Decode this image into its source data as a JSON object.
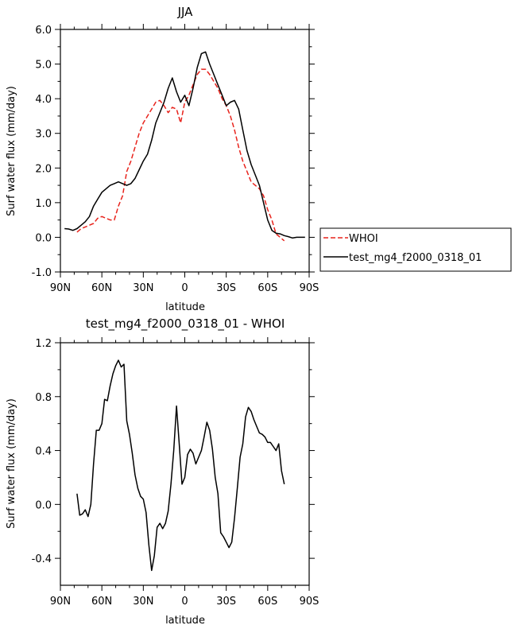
{
  "chart_data": [
    {
      "type": "line",
      "title": "JJA",
      "xlabel": "latitude",
      "ylabel": "Surf water flux (mm/day)",
      "xlim": [
        90,
        -90
      ],
      "ylim": [
        -1.0,
        6.0
      ],
      "x_ticks": [
        90,
        60,
        30,
        0,
        -30,
        -60,
        -90
      ],
      "x_tick_labels": [
        "90N",
        "60N",
        "30N",
        "0",
        "30S",
        "60S",
        "90S"
      ],
      "y_ticks": [
        -1.0,
        0.0,
        1.0,
        2.0,
        3.0,
        4.0,
        5.0,
        6.0
      ],
      "y_tick_labels": [
        "-1.0",
        "0.0",
        "1.0",
        "2.0",
        "3.0",
        "4.0",
        "5.0",
        "6.0"
      ],
      "grid": false,
      "legend_position": "outside-right",
      "series": [
        {
          "name": "WHOI",
          "color": "#e8231c",
          "style": "dashed",
          "x": [
            78,
            75,
            72,
            69,
            66,
            63,
            60,
            57,
            54,
            51,
            48,
            45,
            42,
            39,
            36,
            33,
            30,
            27,
            24,
            21,
            18,
            15,
            12,
            9,
            6,
            3,
            0,
            -3,
            -6,
            -9,
            -12,
            -15,
            -18,
            -21,
            -24,
            -27,
            -30,
            -33,
            -36,
            -39,
            -42,
            -45,
            -48,
            -51,
            -54,
            -57,
            -60,
            -63,
            -66,
            -69,
            -72
          ],
          "y": [
            0.15,
            0.25,
            0.3,
            0.35,
            0.4,
            0.55,
            0.6,
            0.55,
            0.5,
            0.5,
            0.9,
            1.2,
            1.9,
            2.2,
            2.6,
            3.0,
            3.3,
            3.5,
            3.7,
            3.9,
            3.95,
            3.8,
            3.6,
            3.75,
            3.7,
            3.3,
            3.9,
            4.1,
            4.4,
            4.7,
            4.85,
            4.85,
            4.7,
            4.5,
            4.3,
            4.0,
            3.8,
            3.5,
            3.1,
            2.6,
            2.2,
            1.9,
            1.6,
            1.5,
            1.4,
            1.2,
            0.8,
            0.5,
            0.1,
            0.0,
            -0.1
          ]
        },
        {
          "name": "test_mg4_f2000_0318_01",
          "color": "#000000",
          "style": "solid",
          "x": [
            87,
            84,
            81,
            78,
            75,
            72,
            69,
            66,
            63,
            60,
            57,
            54,
            51,
            48,
            45,
            42,
            39,
            36,
            33,
            30,
            27,
            24,
            21,
            18,
            15,
            12,
            9,
            6,
            3,
            0,
            -3,
            -6,
            -9,
            -12,
            -15,
            -18,
            -21,
            -24,
            -27,
            -30,
            -33,
            -36,
            -39,
            -42,
            -45,
            -48,
            -51,
            -54,
            -57,
            -60,
            -63,
            -66,
            -69,
            -72,
            -75,
            -78,
            -81,
            -84,
            -87
          ],
          "y": [
            0.25,
            0.24,
            0.2,
            0.25,
            0.35,
            0.45,
            0.6,
            0.9,
            1.1,
            1.3,
            1.4,
            1.5,
            1.55,
            1.6,
            1.55,
            1.5,
            1.55,
            1.7,
            1.95,
            2.2,
            2.4,
            2.8,
            3.3,
            3.6,
            3.9,
            4.3,
            4.6,
            4.2,
            3.9,
            4.1,
            3.8,
            4.3,
            4.9,
            5.3,
            5.35,
            5.0,
            4.7,
            4.4,
            4.1,
            3.8,
            3.9,
            3.95,
            3.7,
            3.1,
            2.5,
            2.1,
            1.8,
            1.5,
            1.0,
            0.5,
            0.2,
            0.12,
            0.1,
            0.05,
            0.02,
            -0.02,
            0.0,
            0.0,
            0.0
          ]
        }
      ]
    },
    {
      "type": "line",
      "title": "test_mg4_f2000_0318_01 - WHOI",
      "xlabel": "latitude",
      "ylabel": "Surf water flux (mm/day)",
      "xlim": [
        90,
        -90
      ],
      "ylim": [
        -0.6,
        1.2
      ],
      "x_ticks": [
        90,
        60,
        30,
        0,
        -30,
        -60,
        -90
      ],
      "x_tick_labels": [
        "90N",
        "60N",
        "30N",
        "0",
        "30S",
        "60S",
        "90S"
      ],
      "y_ticks": [
        -0.4,
        0.0,
        0.4,
        0.8,
        1.2
      ],
      "y_tick_labels": [
        "-0.4",
        "0.0",
        "0.4",
        "0.8",
        "1.2"
      ],
      "grid": false,
      "series": [
        {
          "color": "#000000",
          "style": "solid",
          "x": [
            78,
            76,
            74,
            72,
            70,
            68,
            66,
            64,
            62,
            60,
            58,
            56,
            54,
            52,
            50,
            48,
            46,
            44,
            42,
            40,
            38,
            36,
            34,
            32,
            30,
            28,
            26,
            24,
            22,
            20,
            18,
            16,
            14,
            12,
            10,
            8,
            6,
            4,
            2,
            0,
            -2,
            -4,
            -6,
            -8,
            -10,
            -12,
            -14,
            -16,
            -18,
            -20,
            -22,
            -24,
            -26,
            -28,
            -30,
            -32,
            -34,
            -36,
            -38,
            -40,
            -42,
            -44,
            -46,
            -48,
            -50,
            -52,
            -54,
            -56,
            -58,
            -60,
            -62,
            -64,
            -66,
            -68,
            -70,
            -72
          ],
          "y": [
            0.08,
            -0.08,
            -0.07,
            -0.04,
            -0.09,
            0.0,
            0.3,
            0.55,
            0.55,
            0.6,
            0.78,
            0.77,
            0.88,
            0.97,
            1.03,
            1.07,
            1.02,
            1.04,
            0.62,
            0.52,
            0.38,
            0.22,
            0.12,
            0.06,
            0.04,
            -0.06,
            -0.3,
            -0.49,
            -0.38,
            -0.17,
            -0.14,
            -0.18,
            -0.14,
            -0.05,
            0.15,
            0.4,
            0.73,
            0.45,
            0.15,
            0.2,
            0.37,
            0.41,
            0.38,
            0.3,
            0.35,
            0.4,
            0.5,
            0.61,
            0.55,
            0.41,
            0.2,
            0.08,
            -0.21,
            -0.24,
            -0.28,
            -0.32,
            -0.28,
            -0.1,
            0.12,
            0.35,
            0.45,
            0.65,
            0.72,
            0.69,
            0.63,
            0.58,
            0.53,
            0.52,
            0.5,
            0.46,
            0.46,
            0.43,
            0.4,
            0.45,
            0.25,
            0.15
          ]
        }
      ]
    }
  ]
}
